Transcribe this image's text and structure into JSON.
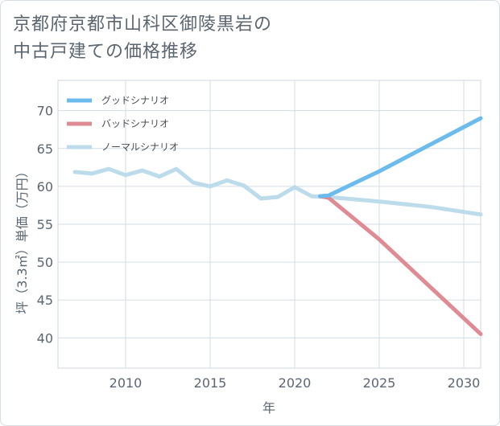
{
  "title_lines": [
    "京都府京都市山科区御陵黒岩の",
    "中古戸建ての価格推移"
  ],
  "chart_data": {
    "type": "line",
    "xlabel": "年",
    "ylabel": "坪（3.3㎡）単価（万円）",
    "xlim": [
      2006,
      2031
    ],
    "ylim": [
      36,
      74
    ],
    "x_ticks": [
      2010,
      2015,
      2020,
      2025,
      2030
    ],
    "y_ticks": [
      40,
      45,
      50,
      55,
      60,
      65,
      70
    ],
    "grid": true,
    "legend_position": "top-left",
    "series": [
      {
        "name": "グッドシナリオ",
        "color": "#6bbbec",
        "x": [
          2021.5,
          2022,
          2025,
          2031
        ],
        "y": [
          58.7,
          58.8,
          62.0,
          69.0
        ]
      },
      {
        "name": "バッドシナリオ",
        "color": "#df8b93",
        "x": [
          2021.5,
          2022,
          2025,
          2031
        ],
        "y": [
          58.7,
          58.5,
          53.0,
          40.5
        ]
      },
      {
        "name": "ノーマルシナリオ",
        "color": "#bcdcec",
        "x": [
          2007,
          2008,
          2009,
          2010,
          2011,
          2012,
          2013,
          2014,
          2015,
          2016,
          2017,
          2018,
          2019,
          2020,
          2021,
          2022,
          2025,
          2028,
          2031
        ],
        "y": [
          61.9,
          61.7,
          62.3,
          61.5,
          62.1,
          61.3,
          62.3,
          60.5,
          60.0,
          60.8,
          60.1,
          58.4,
          58.6,
          59.9,
          58.7,
          58.6,
          58.0,
          57.3,
          56.3
        ]
      }
    ]
  }
}
